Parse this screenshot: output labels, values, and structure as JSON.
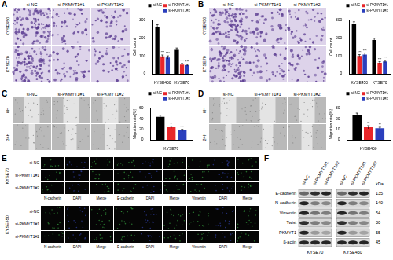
{
  "chart_data": [
    {
      "type": "bar",
      "y_label": "Cell count",
      "categories": [
        "KYSE450",
        "KYSE70"
      ],
      "ylim": [
        0,
        300
      ],
      "yticks": [
        0,
        100,
        200,
        300
      ],
      "grid": false,
      "legend": "top-right",
      "series": [
        {
          "name": "si-NC",
          "color": "#000000",
          "values": [
            262,
            135
          ],
          "errors": [
            14,
            10
          ]
        },
        {
          "name": "si-PKMYT1#1",
          "color": "#e8262a",
          "values": [
            98,
            52
          ],
          "errors": [
            8,
            6
          ],
          "significance": [
            "***",
            "***"
          ]
        },
        {
          "name": "si-PKMYT1#2",
          "color": "#2b3fbd",
          "values": [
            92,
            48
          ],
          "errors": [
            9,
            5
          ],
          "significance": [
            "***",
            "***"
          ]
        }
      ]
    },
    {
      "type": "bar",
      "y_label": "Cell count",
      "categories": [
        "KYSE450",
        "KYSE70"
      ],
      "ylim": [
        0,
        300
      ],
      "yticks": [
        0,
        100,
        200,
        300
      ],
      "grid": false,
      "legend": "top-right",
      "series": [
        {
          "name": "si-NC",
          "color": "#000000",
          "values": [
            280,
            190
          ],
          "errors": [
            12,
            10
          ]
        },
        {
          "name": "si-PKMYT1#1",
          "color": "#e8262a",
          "values": [
            100,
            62
          ],
          "errors": [
            8,
            6
          ],
          "significance": [
            "***",
            "***"
          ]
        },
        {
          "name": "si-PKMYT1#2",
          "color": "#2b3fbd",
          "values": [
            108,
            70
          ],
          "errors": [
            9,
            6
          ],
          "significance": [
            "***",
            "***"
          ]
        }
      ]
    },
    {
      "type": "bar",
      "y_label": "Migration rate(%)",
      "categories": [
        "KYSE70"
      ],
      "ylim": [
        0,
        60
      ],
      "yticks": [
        0,
        20,
        40,
        60
      ],
      "grid": false,
      "legend": "top-right",
      "series": [
        {
          "name": "si-NC",
          "color": "#000000",
          "values": [
            44
          ],
          "errors": [
            3
          ]
        },
        {
          "name": "si-PKMYT1#1",
          "color": "#e8262a",
          "values": [
            24
          ],
          "errors": [
            2
          ],
          "significance": [
            "**"
          ]
        },
        {
          "name": "si-PKMYT1#2",
          "color": "#2b3fbd",
          "values": [
            18
          ],
          "errors": [
            2
          ],
          "significance": [
            "***"
          ]
        }
      ]
    },
    {
      "type": "bar",
      "y_label": "Migration rate(%)",
      "categories": [
        "KYSE450"
      ],
      "ylim": [
        0,
        30
      ],
      "yticks": [
        0,
        10,
        20,
        30
      ],
      "grid": false,
      "legend": "top-right",
      "series": [
        {
          "name": "si-NC",
          "color": "#000000",
          "values": [
            24
          ],
          "errors": [
            1.5
          ]
        },
        {
          "name": "si-PKMYT1#1",
          "color": "#e8262a",
          "values": [
            12
          ],
          "errors": [
            1.5
          ],
          "significance": [
            "**"
          ]
        },
        {
          "name": "si-PKMYT1#2",
          "color": "#2b3fbd",
          "values": [
            11
          ],
          "errors": [
            1
          ],
          "significance": [
            "**"
          ]
        }
      ]
    }
  ],
  "panels": {
    "A": {
      "label": "A",
      "columns": [
        "si-NC",
        "si-PKMYT1#1",
        "si-PKMYT1#2"
      ],
      "rows": [
        "KYSE450",
        "KYSE70"
      ]
    },
    "B": {
      "label": "B",
      "columns": [
        "si-NC",
        "si-PKMYT1#1",
        "si-PKMYT1#2"
      ],
      "rows": [
        "KYSE450",
        "KYSE70"
      ]
    },
    "C": {
      "label": "C",
      "columns": [
        "si-NC",
        "si-PKMYT1#1",
        "si-PKMYT1#2"
      ],
      "rows": [
        "0H",
        "24H"
      ]
    },
    "D": {
      "label": "D",
      "columns": [
        "si-NC",
        "si-PKMYT1#1",
        "si-PKMYT1#2"
      ],
      "rows": [
        "0H",
        "24H"
      ]
    },
    "E": {
      "label": "E",
      "columns": [
        "N-cadherin",
        "DAPI",
        "Merge",
        "E-cadherin",
        "DAPI",
        "Merge",
        "Vimentin",
        "DAPI",
        "Merge"
      ],
      "blocks": [
        {
          "name": "KYSE70",
          "rows": [
            "si-NC",
            "si-PKMYT1#1",
            "si-PKMYT1#2"
          ]
        },
        {
          "name": "KYSE450",
          "rows": [
            "si-NC",
            "si-PKMYT1#1",
            "si-PKMYT1#2"
          ]
        }
      ]
    },
    "F": {
      "label": "F",
      "unit": "kDa",
      "lanes": [
        "si-NC",
        "si-PKMYT1#1",
        "si-PKMYT1#2"
      ],
      "cell_lines": [
        "KYSE70",
        "KYSE450"
      ],
      "proteins": [
        {
          "name": "E-cadherin",
          "kda": 135
        },
        {
          "name": "N-cadherin",
          "kda": 140
        },
        {
          "name": "Vimentin",
          "kda": 54
        },
        {
          "name": "Twist",
          "kda": 30
        },
        {
          "name": "PKMYT1",
          "kda": 55
        },
        {
          "name": "β-actin",
          "kda": 45
        }
      ]
    }
  }
}
